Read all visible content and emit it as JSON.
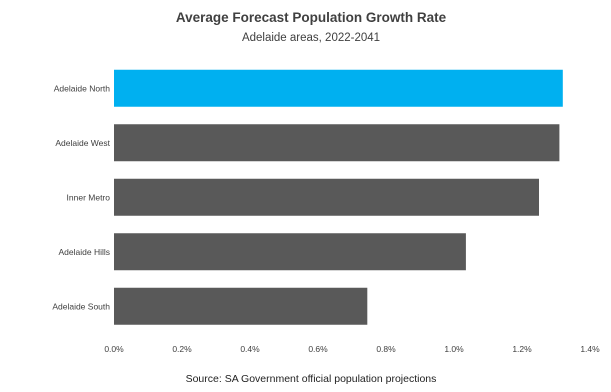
{
  "chart_data": {
    "type": "bar",
    "orientation": "horizontal",
    "title": "Average Forecast Population Growth Rate",
    "subtitle": "Adelaide areas, 2022-2041",
    "source": "Source: SA Government official population projections",
    "categories": [
      "Adelaide North",
      "Adelaide West",
      "Inner Metro",
      "Adelaide Hills",
      "Adelaide South"
    ],
    "values": [
      1.32,
      1.31,
      1.25,
      1.035,
      0.745
    ],
    "xlim": [
      0,
      1.4
    ],
    "xticks": [
      "0.0%",
      "0.2%",
      "0.4%",
      "0.6%",
      "0.8%",
      "1.0%",
      "1.2%",
      "1.4%"
    ],
    "grid": false,
    "legend": "none",
    "colors": {
      "highlight": "#00b0f0",
      "default": "#595959"
    },
    "highlight_index": 0
  }
}
